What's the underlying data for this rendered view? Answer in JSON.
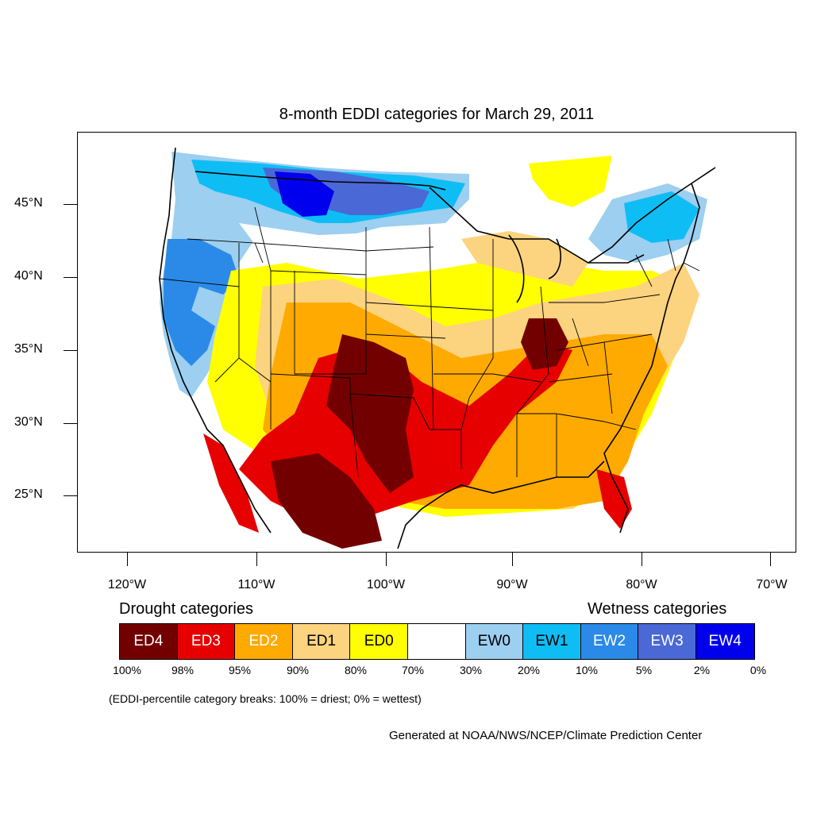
{
  "title": "8-month EDDI categories for March 29, 2011",
  "axes": {
    "y_ticks": [
      {
        "label": "45°N"
      },
      {
        "label": "40°N"
      },
      {
        "label": "35°N"
      },
      {
        "label": "30°N"
      },
      {
        "label": "25°N"
      }
    ],
    "x_ticks": [
      {
        "label": "120°W"
      },
      {
        "label": "110°W"
      },
      {
        "label": "100°W"
      },
      {
        "label": "90°W"
      },
      {
        "label": "80°W"
      },
      {
        "label": "70°W"
      }
    ]
  },
  "legend": {
    "drought_heading": "Drought categories",
    "wetness_heading": "Wetness categories",
    "categories": [
      {
        "label": "ED4",
        "color": "#730000",
        "text_color": "#ffffff"
      },
      {
        "label": "ED3",
        "color": "#e60000",
        "text_color": "#ffffff"
      },
      {
        "label": "ED2",
        "color": "#ffaa00",
        "text_color": "#ffffff"
      },
      {
        "label": "ED1",
        "color": "#fcd37f",
        "text_color": "#000000"
      },
      {
        "label": "ED0",
        "color": "#ffff00",
        "text_color": "#000000"
      },
      {
        "label": "",
        "color": "#ffffff",
        "text_color": "#000000"
      },
      {
        "label": "EW0",
        "color": "#9ccff0",
        "text_color": "#000000"
      },
      {
        "label": "EW1",
        "color": "#0fbdf5",
        "text_color": "#000000"
      },
      {
        "label": "EW2",
        "color": "#2b8ae8",
        "text_color": "#ffffff"
      },
      {
        "label": "EW3",
        "color": "#4a68d6",
        "text_color": "#ffffff"
      },
      {
        "label": "EW4",
        "color": "#0000ee",
        "text_color": "#ffffff"
      }
    ],
    "percent_breaks": [
      "100%",
      "98%",
      "95%",
      "90%",
      "80%",
      "70%",
      "30%",
      "20%",
      "10%",
      "5%",
      "2%",
      "0%"
    ],
    "footnote": "(EDDI-percentile category breaks: 100% = driest; 0% = wettest)"
  },
  "credit": "Generated at NOAA/NWS/NCEP/Climate Prediction Center"
}
